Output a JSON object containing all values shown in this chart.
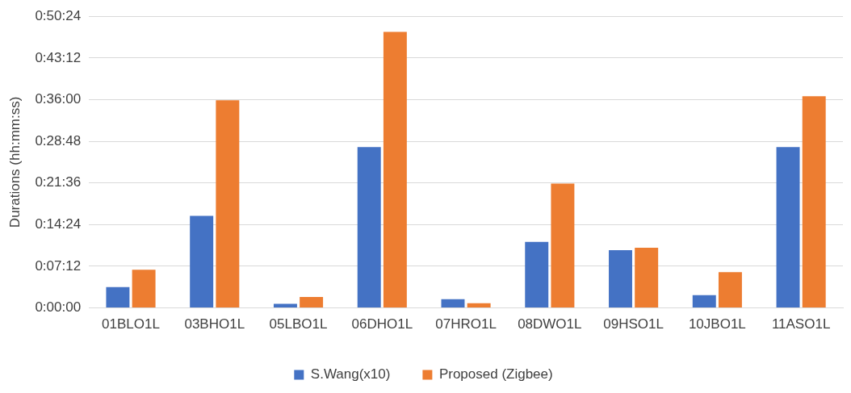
{
  "chart_data": {
    "type": "bar",
    "ylabel": "Durations (hh:mm:ss)",
    "categories": [
      "01BLO1L",
      "03BHO1L",
      "05LBO1L",
      "06DHO1L",
      "07HRO1L",
      "08DWO1L",
      "09HSO1L",
      "10JBO1L",
      "11ASO1L"
    ],
    "series": [
      {
        "name": "S.Wang(x10)",
        "color": "#4472c4",
        "values": [
          3.6,
          15.9,
          0.7,
          27.8,
          1.5,
          11.4,
          10.0,
          2.2,
          27.8
        ]
      },
      {
        "name": "Proposed (Zigbee)",
        "color": "#ed7d31",
        "values": [
          6.6,
          35.9,
          1.9,
          47.7,
          0.8,
          21.5,
          10.4,
          6.2,
          36.6
        ]
      }
    ],
    "ylim": [
      0,
      50.4
    ],
    "yticks": [
      {
        "value": 0,
        "label": "0:00:00"
      },
      {
        "value": 7.2,
        "label": "0:07:12"
      },
      {
        "value": 14.4,
        "label": "0:14:24"
      },
      {
        "value": 21.6,
        "label": "0:21:36"
      },
      {
        "value": 28.8,
        "label": "0:28:48"
      },
      {
        "value": 36,
        "label": "0:36:00"
      },
      {
        "value": 43.2,
        "label": "0:43:12"
      },
      {
        "value": 50.4,
        "label": "0:50:24"
      }
    ],
    "grid": "y",
    "legend": "bottom"
  }
}
